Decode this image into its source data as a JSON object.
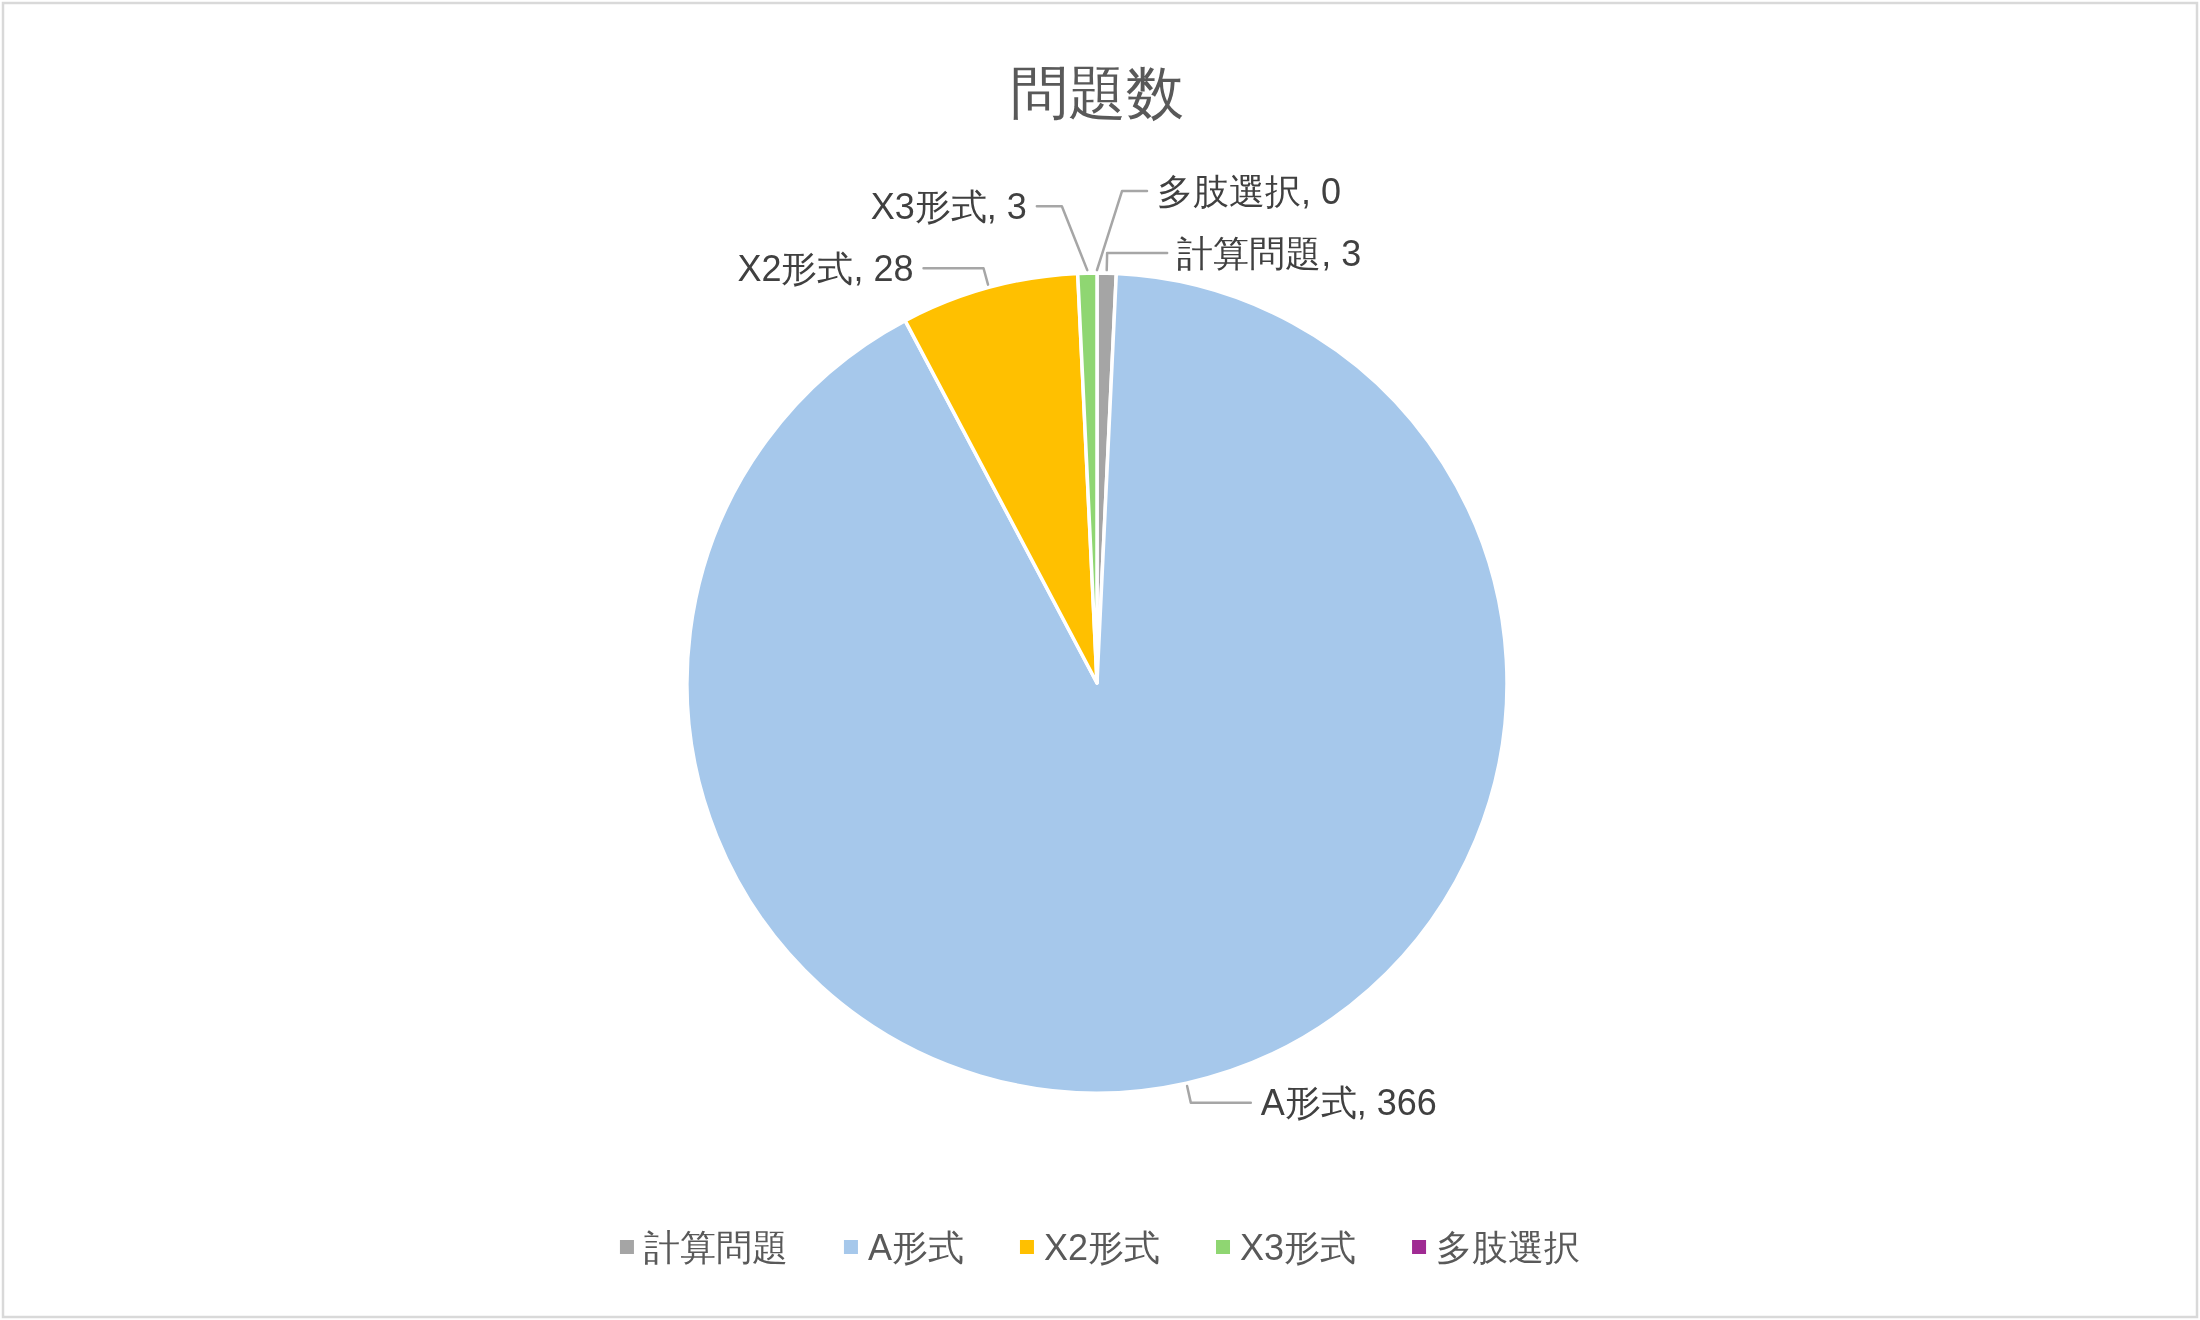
{
  "chart_data": {
    "type": "pie",
    "title": "問題数",
    "categories": [
      "計算問題",
      "A形式",
      "X2形式",
      "X3形式",
      "多肢選択"
    ],
    "values": [
      3,
      366,
      28,
      3,
      0
    ],
    "colors": [
      "#a5a5a5",
      "#a6c8eb",
      "#ffc000",
      "#8fd672",
      "#a02b93"
    ],
    "value_labels": [
      "計算問題, 3",
      "A形式, 366",
      "X2形式, 28",
      "X3形式, 3",
      "多肢選択, 0"
    ],
    "legend": "bottom"
  }
}
